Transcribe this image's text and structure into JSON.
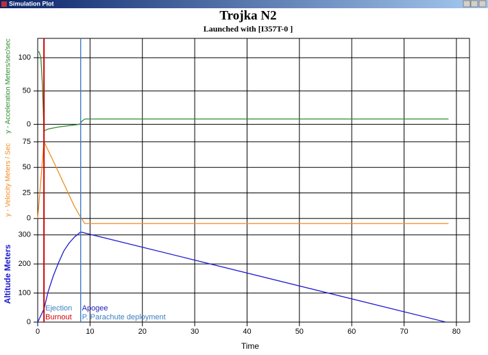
{
  "window_title": "Simulation Plot",
  "title": "Trojka N2",
  "subtitle": "Launched with [I357T-0   ]",
  "chart_data": [
    {
      "type": "line",
      "ylabel": "y - Acceleration Meters/sec/sec",
      "color": "#2e8b2e",
      "x": [
        0,
        0.3,
        0.6,
        0.9,
        1.2,
        2,
        4,
        6,
        8,
        8.5,
        9,
        78.5
      ],
      "values": [
        110,
        108,
        100,
        60,
        -10,
        -7,
        -4,
        -2,
        0,
        5,
        8,
        8
      ],
      "xlim": [
        0,
        82.5
      ],
      "ylim": [
        -14,
        129
      ],
      "yticks": [
        0,
        50,
        100
      ],
      "grid": true
    },
    {
      "type": "line",
      "ylabel": "y - Velocity Meters / Sec",
      "color": "#f08c1e",
      "x": [
        0,
        1.2,
        3,
        5,
        7,
        8,
        9,
        78.5
      ],
      "values": [
        0,
        75,
        56,
        34,
        12,
        3,
        -5,
        -5
      ],
      "xlim": [
        0,
        82.5
      ],
      "ylim": [
        -7.5,
        83
      ],
      "yticks": [
        0,
        25,
        50,
        75
      ],
      "grid": true
    },
    {
      "type": "line",
      "ylabel": "Altitude Meters",
      "color": "#1a1ad0",
      "x": [
        0,
        1.2,
        2,
        3,
        4,
        5,
        6,
        7,
        8.2,
        78
      ],
      "values": [
        0,
        45,
        105,
        160,
        205,
        245,
        272,
        292,
        310,
        0
      ],
      "xlim": [
        0,
        82.5
      ],
      "ylim": [
        0,
        330
      ],
      "yticks": [
        0,
        100,
        200,
        300
      ],
      "xlabel": "Time",
      "xticks": [
        0,
        10,
        20,
        30,
        40,
        50,
        60,
        70,
        80
      ],
      "grid": true,
      "events": [
        {
          "label": "Ejection",
          "x": 1.2,
          "color": "#3a7fc0"
        },
        {
          "label": "Burnout",
          "x": 1.2,
          "color": "#d00000"
        },
        {
          "label": "Apogee",
          "x": 8.2,
          "color": "#2020c0"
        },
        {
          "label": "P.  Parachute deployment",
          "x": 8.2,
          "color": "#3a7fc0"
        }
      ]
    }
  ]
}
